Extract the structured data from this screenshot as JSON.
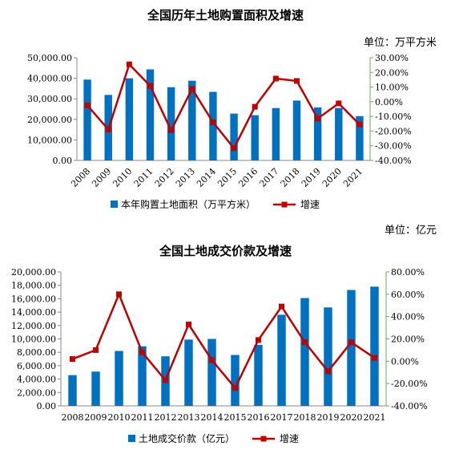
{
  "charts": [
    {
      "title": "全国历年土地购置面积及增速",
      "unit_label": "单位：万平方米",
      "colors": {
        "bar": "#0070C0",
        "line": "#C00000",
        "right_axis": "#70AD47"
      },
      "chart_data": {
        "type": "bar",
        "categories": [
          "2008",
          "2009",
          "2010",
          "2011",
          "2012",
          "2013",
          "2014",
          "2015",
          "2016",
          "2017",
          "2018",
          "2019",
          "2020",
          "2021"
        ],
        "series": [
          {
            "name": "本年购置土地面积（万平方米）",
            "kind": "bar",
            "axis": "left",
            "values": [
              39353,
              31910,
              40000,
              44327,
              35667,
              38814,
              33383,
              22811,
              22025,
              25508,
              29142,
              25822,
              25536,
              21590
            ]
          },
          {
            "name": "增速",
            "kind": "line",
            "axis": "right",
            "values": [
              -2.5,
              -18.9,
              25.5,
              10.8,
              -19.5,
              8.8,
              -14.0,
              -31.7,
              -3.4,
              15.8,
              14.2,
              -11.4,
              -1.1,
              -15.5
            ]
          }
        ],
        "left_ticks": [
          "0.00",
          "10,000.00",
          "20,000.00",
          "30,000.00",
          "40,000.00",
          "50,000.00"
        ],
        "right_ticks": [
          "-40.00%",
          "-30.00%",
          "-20.00%",
          "-10.00%",
          "0.00%",
          "10.00%",
          "20.00%",
          "30.00%"
        ],
        "ylim_left": [
          0,
          50000
        ],
        "ylim_right": [
          -40,
          30
        ],
        "x_labels_rotated": true
      }
    },
    {
      "title": "全国土地成交价款及增速",
      "unit_label": "单位：亿元",
      "colors": {
        "bar": "#0070C0",
        "line": "#C00000",
        "right_axis": "#70AD47"
      },
      "chart_data": {
        "type": "bar",
        "categories": [
          "2008",
          "2009",
          "2010",
          "2011",
          "2012",
          "2013",
          "2014",
          "2015",
          "2016",
          "2017",
          "2018",
          "2019",
          "2020",
          "2021"
        ],
        "series": [
          {
            "name": "土地成交价款（亿元）",
            "kind": "bar",
            "axis": "left",
            "values": [
              4590,
              5120,
              8200,
              8900,
              7400,
              9900,
              10000,
              7600,
              9100,
              13600,
              16100,
              14700,
              17300,
              17800
            ]
          },
          {
            "name": "增速",
            "kind": "line",
            "axis": "right",
            "values": [
              2,
              10,
              60,
              8,
              -17,
              33,
              1,
              -24,
              19,
              49,
              17,
              -9,
              17,
              3
            ]
          }
        ],
        "left_ticks": [
          "0.00",
          "2,000.00",
          "4,000.00",
          "6,000.00",
          "8,000.00",
          "10,000.00",
          "12,000.00",
          "14,000.00",
          "16,000.00",
          "18,000.00",
          "20,000.00"
        ],
        "right_ticks": [
          "-40.00%",
          "-20.00%",
          "0.00%",
          "20.00%",
          "40.00%",
          "60.00%",
          "80.00%"
        ],
        "ylim_left": [
          0,
          20000
        ],
        "ylim_right": [
          -40,
          80
        ],
        "x_labels_rotated": false
      }
    }
  ]
}
